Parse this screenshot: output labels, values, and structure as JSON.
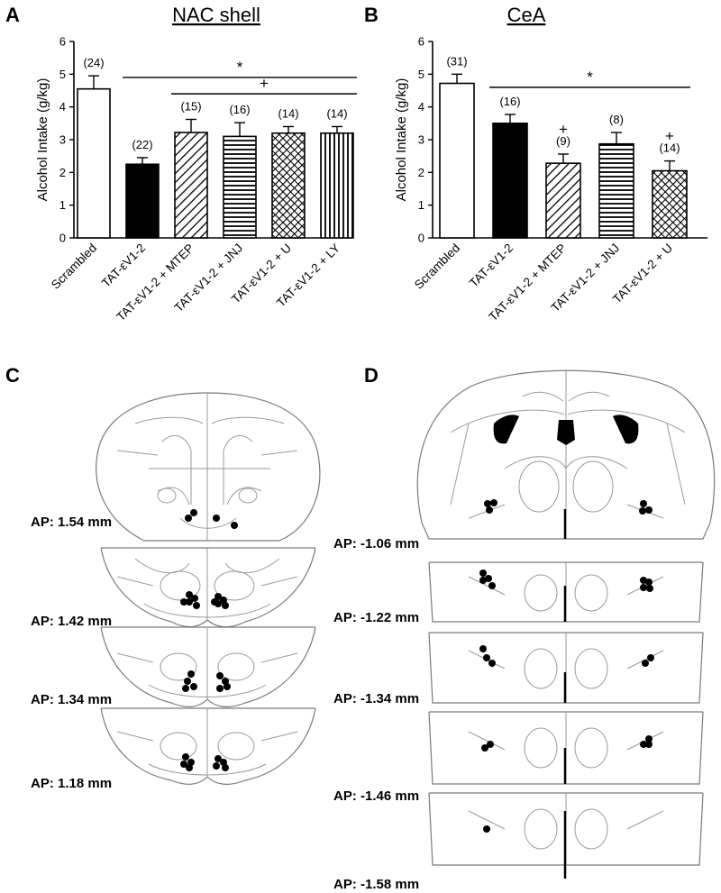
{
  "panels": {
    "A": {
      "letter": "A",
      "title": "NAC shell"
    },
    "B": {
      "letter": "B",
      "title": "CeA"
    },
    "C": {
      "letter": "C"
    },
    "D": {
      "letter": "D"
    }
  },
  "chart_data": [
    {
      "type": "bar",
      "panel": "A",
      "title": "NAC shell",
      "ylabel": "Alcohol Intake (g/kg)",
      "ylim": [
        0,
        6
      ],
      "yticks": [
        0,
        1,
        2,
        3,
        4,
        5,
        6
      ],
      "categories": [
        "Scrambled",
        "TAT-εV1-2",
        "TAT-εV1-2 + MTEP",
        "TAT-εV1-2 + JNJ",
        "TAT-εV1-2 + U",
        "TAT-εV1-2 + LY"
      ],
      "values": [
        4.55,
        2.25,
        3.22,
        3.1,
        3.2,
        3.2
      ],
      "errors": [
        0.4,
        0.2,
        0.4,
        0.42,
        0.2,
        0.2
      ],
      "n_labels": [
        "(24)",
        "(22)",
        "(15)",
        "(16)",
        "(14)",
        "(14)"
      ],
      "patterns": [
        "white",
        "black",
        "diagonal",
        "horizontal",
        "crosshatch",
        "vertical"
      ],
      "significance": [
        {
          "symbol": "*",
          "from": 1,
          "to": 5,
          "y": 4.9
        },
        {
          "symbol": "+",
          "from": 2,
          "to": 5,
          "y": 4.4
        }
      ]
    },
    {
      "type": "bar",
      "panel": "B",
      "title": "CeA",
      "ylabel": "Alcohol Intake (g/kg)",
      "ylim": [
        0,
        6
      ],
      "yticks": [
        0,
        1,
        2,
        3,
        4,
        5,
        6
      ],
      "categories": [
        "Scrambled",
        "TAT-εV1-2",
        "TAT-εV1-2 + MTEP",
        "TAT-εV1-2 + JNJ",
        "TAT-εV1-2 + U"
      ],
      "values": [
        4.72,
        3.5,
        2.28,
        2.87,
        2.05
      ],
      "errors": [
        0.28,
        0.27,
        0.28,
        0.35,
        0.3
      ],
      "n_labels": [
        "(31)",
        "(16)",
        "(9)",
        "(8)",
        "(14)"
      ],
      "plus_marks": [
        false,
        false,
        true,
        false,
        true
      ],
      "patterns": [
        "white",
        "black",
        "diagonal",
        "horizontal",
        "crosshatch"
      ],
      "significance": [
        {
          "symbol": "*",
          "from": 1,
          "to": 4,
          "y": 4.6
        }
      ]
    }
  ],
  "sections": {
    "C": {
      "ap_labels": [
        "AP: 1.54 mm",
        "AP: 1.42 mm",
        "AP: 1.34 mm",
        "AP: 1.18 mm"
      ]
    },
    "D": {
      "ap_labels": [
        "AP: -1.06 mm",
        "AP: -1.22 mm",
        "AP: -1.34 mm",
        "AP: -1.46 mm",
        "AP: -1.58 mm"
      ]
    }
  },
  "colors": {
    "bar_fill_black": "#000000",
    "bar_fill_white": "#ffffff",
    "brain_line": "#9a9a9a",
    "marker": "#000000"
  }
}
